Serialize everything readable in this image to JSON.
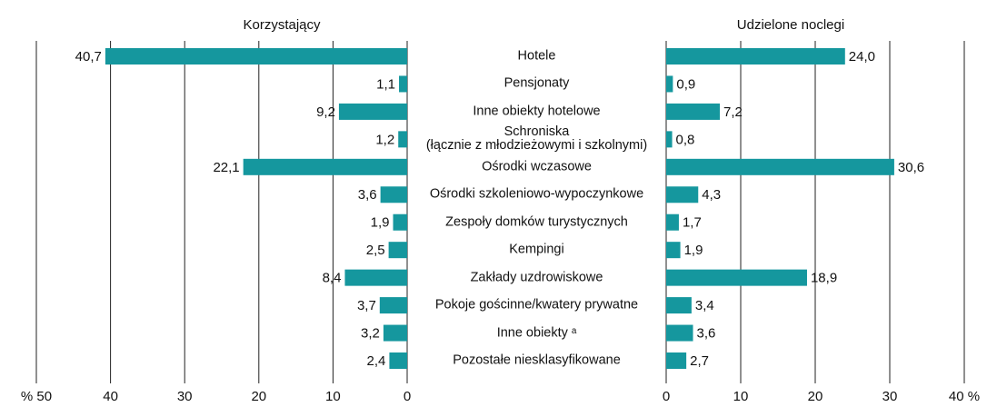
{
  "chart_data": {
    "type": "butterfly",
    "categories": [
      "Hotele",
      "Pensjonaty",
      "Inne obiekty hotelowe",
      "Schroniska\n(łącznie z młodzieżowymi i szkolnymi)",
      "Ośrodki wczasowe",
      "Ośrodki szkoleniowo-wypoczynkowe",
      "Zespoły domków turystycznych",
      "Kempingi",
      "Zakłady uzdrowiskowe",
      "Pokoje gościnne/kwatery prywatne",
      "Inne obiekty ᵃ",
      "Pozostałe niesklasyfikowane"
    ],
    "series": [
      {
        "name": "Korzystający",
        "color": "#15979e",
        "side": "left",
        "values": [
          40.7,
          1.1,
          9.2,
          1.2,
          22.1,
          3.6,
          1.9,
          2.5,
          8.4,
          3.7,
          3.2,
          2.4
        ],
        "value_labels": [
          "40,7",
          "1,1",
          "9,2",
          "1,2",
          "22,1",
          "3,6",
          "1,9",
          "2,5",
          "8,4",
          "3,7",
          "3,2",
          "2,4"
        ],
        "xlim": [
          0,
          50
        ],
        "xticks": [
          {
            "value": 50,
            "label": "% 50"
          },
          40,
          30,
          20,
          10,
          0
        ]
      },
      {
        "name": "Udzielone noclegi",
        "color": "#15979e",
        "side": "right",
        "values": [
          24.0,
          0.9,
          7.2,
          0.8,
          30.6,
          4.3,
          1.7,
          1.9,
          18.9,
          3.4,
          3.6,
          2.7
        ],
        "value_labels": [
          "24,0",
          "0,9",
          "7,2",
          "0,8",
          "30,6",
          "4,3",
          "1,7",
          "1,9",
          "18,9",
          "3,4",
          "3,6",
          "2,7"
        ],
        "xlim": [
          0,
          40
        ],
        "xticks": [
          0,
          10,
          20,
          30,
          {
            "value": 40,
            "label": "40 %"
          }
        ]
      }
    ]
  }
}
